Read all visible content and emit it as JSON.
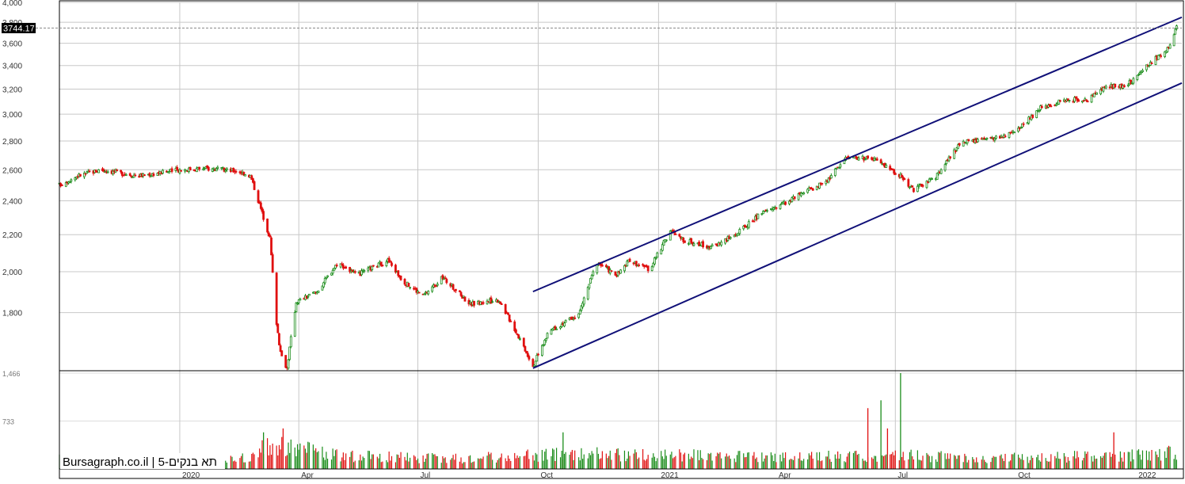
{
  "chart_data": {
    "type": "candlestick",
    "watermark": "Bursagraph.co.il | תא בנקים-5",
    "last_price_label": "3744.17",
    "last_price": 3744.17,
    "price_axis": {
      "scale": "log",
      "range": [
        1550,
        4000
      ],
      "tick_values": [
        4000,
        3800,
        3600,
        3400,
        3200,
        3000,
        2800,
        2600,
        2400,
        2200,
        2000,
        1800
      ],
      "tick_labels": [
        "4,000",
        "3,800",
        "3,600",
        "3,400",
        "3,200",
        "3,000",
        "2,800",
        "2,600",
        "2,400",
        "2,200",
        "2,000",
        "1,800"
      ]
    },
    "volume_axis": {
      "max": 1466,
      "tick_values": [
        1466,
        733
      ],
      "tick_labels": [
        "1,466",
        "733"
      ]
    },
    "time_axis": {
      "start": "2019-10-01",
      "end": "2022-02-05",
      "tick_dates": [
        "2020-01-01",
        "2020-04-01",
        "2020-07-01",
        "2020-10-01",
        "2021-01-01",
        "2021-04-01",
        "2021-07-01",
        "2021-10-01",
        "2022-01-01"
      ],
      "tick_labels": [
        "2020",
        "Apr",
        "Jul",
        "Oct",
        "2021",
        "Apr",
        "Jul",
        "Oct",
        "2022"
      ]
    },
    "price_path": [
      [
        "2019-10-01",
        2500
      ],
      [
        "2019-10-15",
        2560
      ],
      [
        "2019-11-01",
        2600
      ],
      [
        "2019-12-01",
        2560
      ],
      [
        "2020-01-01",
        2600
      ],
      [
        "2020-01-20",
        2610
      ],
      [
        "2020-02-15",
        2590
      ],
      [
        "2020-02-24",
        2560
      ],
      [
        "2020-03-05",
        2300
      ],
      [
        "2020-03-10",
        2180
      ],
      [
        "2020-03-14",
        1800
      ],
      [
        "2020-03-18",
        1620
      ],
      [
        "2020-03-23",
        1560
      ],
      [
        "2020-03-30",
        1850
      ],
      [
        "2020-04-15",
        1900
      ],
      [
        "2020-05-01",
        2050
      ],
      [
        "2020-05-15",
        1980
      ],
      [
        "2020-06-08",
        2060
      ],
      [
        "2020-06-20",
        1950
      ],
      [
        "2020-07-05",
        1880
      ],
      [
        "2020-07-20",
        1970
      ],
      [
        "2020-08-10",
        1840
      ],
      [
        "2020-09-01",
        1860
      ],
      [
        "2020-09-10",
        1760
      ],
      [
        "2020-09-20",
        1650
      ],
      [
        "2020-09-27",
        1570
      ],
      [
        "2020-10-10",
        1720
      ],
      [
        "2020-11-01",
        1790
      ],
      [
        "2020-11-15",
        2050
      ],
      [
        "2020-11-30",
        1980
      ],
      [
        "2020-12-10",
        2060
      ],
      [
        "2020-12-25",
        2010
      ],
      [
        "2021-01-10",
        2220
      ],
      [
        "2021-01-20",
        2170
      ],
      [
        "2021-02-10",
        2130
      ],
      [
        "2021-03-01",
        2200
      ],
      [
        "2021-03-20",
        2320
      ],
      [
        "2021-04-05",
        2380
      ],
      [
        "2021-04-20",
        2440
      ],
      [
        "2021-05-10",
        2530
      ],
      [
        "2021-05-25",
        2690
      ],
      [
        "2021-06-15",
        2670
      ],
      [
        "2021-07-05",
        2560
      ],
      [
        "2021-07-15",
        2470
      ],
      [
        "2021-08-01",
        2550
      ],
      [
        "2021-08-20",
        2790
      ],
      [
        "2021-09-10",
        2810
      ],
      [
        "2021-10-01",
        2860
      ],
      [
        "2021-10-20",
        3050
      ],
      [
        "2021-11-10",
        3120
      ],
      [
        "2021-11-25",
        3110
      ],
      [
        "2021-12-10",
        3220
      ],
      [
        "2021-12-25",
        3230
      ],
      [
        "2022-01-10",
        3400
      ],
      [
        "2022-01-25",
        3550
      ],
      [
        "2022-02-01",
        3744
      ]
    ],
    "volume_profile": [
      [
        "2019-10-01",
        180
      ],
      [
        "2020-02-20",
        190
      ],
      [
        "2020-03-10",
        420
      ],
      [
        "2020-03-25",
        380
      ],
      [
        "2020-05-01",
        230
      ],
      [
        "2020-08-01",
        180
      ],
      [
        "2020-09-25",
        240
      ],
      [
        "2020-11-10",
        260
      ],
      [
        "2021-01-15",
        240
      ],
      [
        "2021-04-01",
        200
      ],
      [
        "2021-06-10",
        230
      ],
      [
        "2021-07-05",
        240
      ],
      [
        "2021-09-01",
        190
      ],
      [
        "2021-12-01",
        220
      ],
      [
        "2022-02-01",
        280
      ]
    ],
    "volume_spikes": [
      [
        "2020-03-20",
        620
      ],
      [
        "2020-03-05",
        560
      ],
      [
        "2021-06-10",
        930
      ],
      [
        "2021-06-20",
        1050
      ],
      [
        "2021-06-25",
        620
      ],
      [
        "2021-07-05",
        1466
      ],
      [
        "2021-12-15",
        560
      ],
      [
        "2020-10-20",
        560
      ]
    ],
    "trend_channel": {
      "upper": [
        [
          "2020-09-27",
          1900
        ],
        [
          "2022-02-05",
          3850
        ]
      ],
      "lower": [
        [
          "2020-09-27",
          1560
        ],
        [
          "2022-02-05",
          3250
        ]
      ]
    },
    "colors": {
      "up": "#1a8c1a",
      "down": "#e01010",
      "channel": "#101078",
      "grid": "#c8c8c8",
      "dashed_line": "#888888",
      "last_price_bg": "#000000",
      "last_price_text": "#ffffff"
    }
  }
}
